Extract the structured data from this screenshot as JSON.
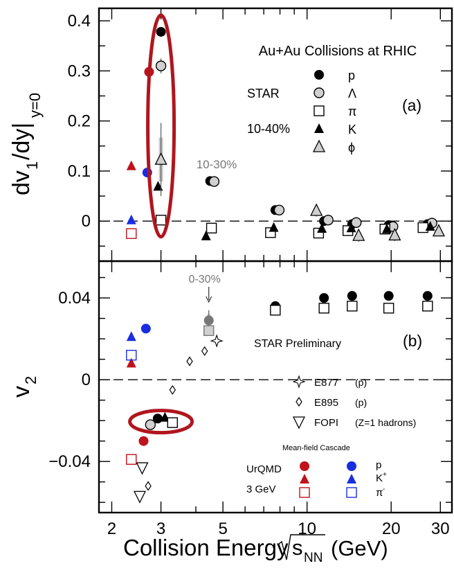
{
  "chart_data": [
    {
      "panel": "(a)",
      "type": "scatter",
      "ylabel_main": "dv",
      "ylabel_sub1": "1",
      "ylabel_mid": "/dy|",
      "ylabel_sub2": "y=0",
      "ylim": [
        -0.08,
        0.425
      ],
      "x_scale": "log",
      "yticks": [
        0,
        0.1,
        0.2,
        0.3,
        0.4
      ],
      "ytick_labels": [
        "0",
        "0.1",
        "0.2",
        "0.3",
        "0.4"
      ],
      "title": "Au+Au Collisions at RHIC",
      "experiment": "STAR",
      "centrality": "10-40%",
      "annotation": "10-30%",
      "legend": [
        {
          "marker": "filled-circle",
          "label": "p"
        },
        {
          "marker": "open-circle",
          "label": "Λ"
        },
        {
          "marker": "open-square",
          "label": "π"
        },
        {
          "marker": "filled-triangle",
          "label": "K"
        },
        {
          "marker": "open-triangle",
          "label": "ϕ"
        }
      ],
      "series": [
        {
          "name": "p",
          "marker": "filled-circle",
          "color": "#000000",
          "x": [
            3.0,
            4.5,
            7.7,
            11.5,
            14.5,
            19.6,
            27.0
          ],
          "y": [
            0.378,
            0.08,
            0.022,
            0.0,
            -0.006,
            -0.008,
            -0.006
          ]
        },
        {
          "name": "Λ",
          "marker": "open-circle",
          "color": "#000000",
          "x": [
            3.0,
            4.65,
            7.95,
            11.9,
            15.0,
            20.3,
            28.0
          ],
          "y": [
            0.31,
            0.079,
            0.022,
            0.002,
            -0.003,
            -0.011,
            -0.004
          ],
          "err": [
            0.015,
            0,
            0,
            0,
            0,
            0,
            0
          ]
        },
        {
          "name": "π",
          "marker": "open-square",
          "color": "#000000",
          "x": [
            3.0,
            4.55,
            7.4,
            11.0,
            14.0,
            19.0,
            26.0
          ],
          "y": [
            0.002,
            -0.014,
            -0.023,
            -0.024,
            -0.019,
            -0.016,
            -0.013
          ]
        },
        {
          "name": "K",
          "marker": "filled-triangle",
          "color": "#000000",
          "x": [
            2.93,
            4.35,
            7.6,
            11.3,
            14.4,
            19.3,
            27.6
          ],
          "y": [
            0.069,
            -0.03,
            -0.013,
            -0.015,
            -0.014,
            -0.016,
            -0.011
          ]
        },
        {
          "name": "ϕ",
          "marker": "open-triangle",
          "color": "#000000",
          "x": [
            3.0,
            10.8,
            15.3,
            20.6,
            29.6
          ],
          "y": [
            0.123,
            0.021,
            -0.029,
            -0.028,
            -0.02
          ],
          "err": [
            0.073,
            0.012,
            0.012,
            0.012,
            0.01
          ]
        },
        {
          "name": "UrQMD p",
          "marker": "filled-circle",
          "color": "#c0121a",
          "x": [
            2.72
          ],
          "y": [
            0.298
          ]
        },
        {
          "name": "UrQMD Λ",
          "marker": "filled-circle",
          "color": "#1a2ee0",
          "x": [
            2.68
          ],
          "y": [
            0.097
          ]
        },
        {
          "name": "UrQMD K",
          "marker": "filled-triangle",
          "color": "#c0121a",
          "x": [
            2.35
          ],
          "y": [
            0.11
          ]
        },
        {
          "name": "UrQMD K+",
          "marker": "filled-triangle",
          "color": "#1a2ee0",
          "x": [
            2.35
          ],
          "y": [
            0.002
          ]
        },
        {
          "name": "UrQMD π",
          "marker": "open-square",
          "color": "#c0121a",
          "x": [
            2.35
          ],
          "y": [
            -0.025
          ]
        }
      ]
    },
    {
      "panel": "(b)",
      "type": "scatter",
      "ylabel": "v",
      "ylabel_sub": "2",
      "xlabel": "Collision Energy",
      "xlabel_unit": "(GeV)",
      "xlabel_sym": "s",
      "xlabel_sub": "NN",
      "x_scale": "log",
      "xlim": [
        1.8,
        33
      ],
      "xticks": [
        2,
        3,
        5,
        10,
        20,
        30
      ],
      "xtick_labels": [
        "2",
        "3",
        "5",
        "10",
        "20",
        "30"
      ],
      "ylim": [
        -0.065,
        0.058
      ],
      "yticks": [
        -0.04,
        0,
        0.04
      ],
      "ytick_labels": [
        "−0.04",
        "0",
        "0.04"
      ],
      "annotation_top": "0-30%",
      "preliminary": "STAR Preliminary",
      "legend_experiments": [
        {
          "marker": "star",
          "name": "E877",
          "note": "(p)"
        },
        {
          "marker": "open-diamond",
          "name": "E895",
          "note": "(p)"
        },
        {
          "marker": "open-down-triangle",
          "name": "FOPI",
          "note": "(Z=1 hadrons)"
        }
      ],
      "model_header": "Mean-field Cascade",
      "model_name": "UrQMD",
      "model_energy": "3 GeV",
      "model_species": [
        "p",
        "K",
        "π"
      ],
      "model_species_sup": [
        "",
        "+",
        "-"
      ],
      "series": [
        {
          "name": "p",
          "marker": "filled-circle",
          "color": "#000000",
          "x": [
            2.92,
            7.7,
            11.5,
            14.5,
            19.6,
            27.0
          ],
          "y": [
            -0.019,
            0.036,
            0.04,
            0.041,
            0.041,
            0.041
          ]
        },
        {
          "name": "K",
          "marker": "filled-triangle",
          "color": "#000000",
          "x": [
            3.1
          ],
          "y": [
            -0.0185
          ]
        },
        {
          "name": "π",
          "marker": "open-square",
          "color": "#000000",
          "x": [
            3.3,
            7.7,
            11.5,
            14.5,
            19.6,
            27.0
          ],
          "y": [
            -0.021,
            0.034,
            0.035,
            0.036,
            0.035,
            0.036
          ]
        },
        {
          "name": "Λ",
          "marker": "open-circle",
          "color": "#000000",
          "x": [
            2.75
          ],
          "y": [
            -0.022
          ]
        },
        {
          "name": "p 0-30%",
          "marker": "filled-circle",
          "color": "#777777",
          "x": [
            4.45
          ],
          "y": [
            0.029
          ],
          "err": [
            0.005
          ]
        },
        {
          "name": "π 0-30%",
          "marker": "open-square",
          "color": "#777777",
          "x": [
            4.45
          ],
          "y": [
            0.024
          ]
        },
        {
          "name": "E877 (p)",
          "marker": "star",
          "color": "#000000",
          "x": [
            4.75
          ],
          "y": [
            0.019
          ]
        },
        {
          "name": "E895 (p)",
          "marker": "open-diamond",
          "color": "#000000",
          "x": [
            2.7,
            3.3,
            3.8,
            4.3
          ],
          "y": [
            -0.052,
            -0.005,
            0.009,
            0.014
          ]
        },
        {
          "name": "FOPI (Z=1 hadrons)",
          "marker": "open-down-triangle",
          "color": "#000000",
          "x": [
            2.52,
            2.57
          ],
          "y": [
            -0.057,
            -0.043
          ]
        },
        {
          "name": "UrQMD p",
          "marker": "filled-circle",
          "color": "#c0121a",
          "x": [
            2.6
          ],
          "y": [
            -0.03
          ]
        },
        {
          "name": "UrQMD p+",
          "marker": "filled-circle",
          "color": "#1a2ee0",
          "x": [
            2.65
          ],
          "y": [
            0.025
          ]
        },
        {
          "name": "UrQMD K",
          "marker": "filled-triangle",
          "color": "#c0121a",
          "x": [
            2.35
          ],
          "y": [
            0.008
          ]
        },
        {
          "name": "UrQMD K+",
          "marker": "filled-triangle",
          "color": "#1a2ee0",
          "x": [
            2.35
          ],
          "y": [
            0.021
          ]
        },
        {
          "name": "UrQMD π",
          "marker": "open-square",
          "color": "#c0121a",
          "x": [
            2.35
          ],
          "y": [
            -0.039
          ]
        },
        {
          "name": "UrQMD π-",
          "marker": "open-square",
          "color": "#1a2ee0",
          "x": [
            2.35
          ],
          "y": [
            0.012
          ]
        }
      ]
    }
  ],
  "colors": {
    "highlight": "#b0161e",
    "red": "#c0121a",
    "blue": "#1a2ee0",
    "grey": "#777777"
  }
}
